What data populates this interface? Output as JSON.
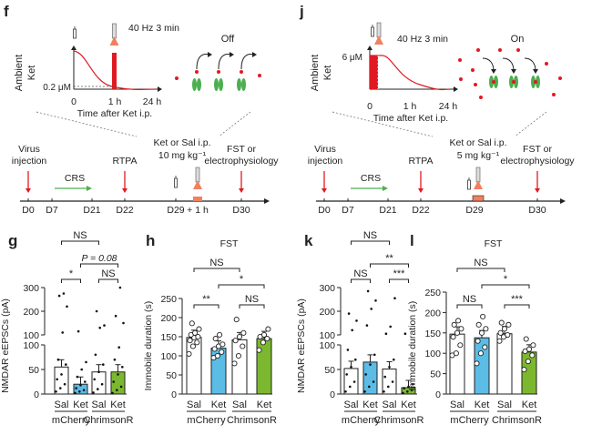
{
  "colors": {
    "red": "#e01a22",
    "green": "#4caf50",
    "blue": "#5bbce6",
    "lime": "#7cb82f",
    "salmon": "#f08060"
  },
  "panels": {
    "f": {
      "label": "f",
      "stim": "40 Hz 3 min",
      "state": "Off",
      "ylabel1": "Ambient",
      "ylabel2": "Ket",
      "conc": "0.2 μM",
      "xticks": [
        "0",
        "1 h",
        "24 h"
      ],
      "xlabel": "Time after Ket i.p.",
      "drug1": "Ket or Sal i.p.",
      "drug2": "10 mg kg⁻¹",
      "virus1": "Virus",
      "virus2": "injection",
      "crs": "CRS",
      "rtpa": "RTPA",
      "fst1": "FST or",
      "fst2": "electrophysiology",
      "days": [
        "D0",
        "D7",
        "D21",
        "D22",
        "D29",
        "+ 1 h",
        "D30"
      ]
    },
    "j": {
      "label": "j",
      "stim": "40 Hz 3 min",
      "state": "On",
      "ylabel1": "Ambient",
      "ylabel2": "Ket",
      "conc": "6 μM",
      "xticks": [
        "0",
        "1 h",
        "24 h"
      ],
      "xlabel": "Time after Ket i.p.",
      "drug1": "Ket or Sal i.p.",
      "drug2": "5 mg kg⁻¹",
      "virus1": "Virus",
      "virus2": "injection",
      "crs": "CRS",
      "rtpa": "RTPA",
      "fst1": "FST or",
      "fst2": "electrophysiology",
      "days": [
        "D0",
        "D7",
        "D21",
        "D22",
        "D29",
        "D30"
      ]
    }
  },
  "chart_data": [
    {
      "id": "g",
      "type": "bar",
      "title": "",
      "ylabel": "NMDAR eEPSCs (pA)",
      "yticks_low": [
        "0",
        "50",
        "100"
      ],
      "yticks_high": [
        "100",
        "200",
        "300"
      ],
      "categories": [
        "Sal",
        "Ket",
        "Sal",
        "Ket"
      ],
      "groups": [
        "mCherry",
        "ChrimsonR"
      ],
      "values": [
        55,
        20,
        45,
        45
      ],
      "fills": [
        "#ffffff",
        "#5bbce6",
        "#ffffff",
        "#7cb82f"
      ],
      "points": [
        [
          5,
          12,
          20,
          30,
          40,
          60,
          70,
          110,
          220,
          265,
          275
        ],
        [
          2,
          5,
          8,
          12,
          18,
          25,
          35,
          50,
          65,
          115
        ],
        [
          3,
          10,
          20,
          30,
          45,
          60,
          80,
          130,
          140,
          200
        ],
        [
          2,
          8,
          15,
          25,
          40,
          55,
          70,
          95,
          150,
          180,
          300
        ]
      ],
      "stats": [
        {
          "text": "NS",
          "a": 0,
          "b": 2,
          "level": 3
        },
        {
          "text": "P = 0.08",
          "a": 1,
          "b": 3,
          "level": 2
        },
        {
          "text": "*",
          "a": 0,
          "b": 1,
          "level": 1
        },
        {
          "text": "NS",
          "a": 2,
          "b": 3,
          "level": 1
        }
      ]
    },
    {
      "id": "h",
      "type": "bar",
      "title": "FST",
      "ylabel": "Immobile duration (s)",
      "yticks": [
        "0",
        "50",
        "100",
        "150",
        "200",
        "250"
      ],
      "ylim": [
        0,
        250
      ],
      "categories": [
        "Sal",
        "Ket",
        "Sal",
        "Ket"
      ],
      "groups": [
        "mCherry",
        "ChrimsonR"
      ],
      "values": [
        148,
        120,
        142,
        145
      ],
      "fills": [
        "#ffffff",
        "#5bbce6",
        "#ffffff",
        "#7cb82f"
      ],
      "points": [
        [
          105,
          125,
          135,
          140,
          148,
          150,
          155,
          160,
          170,
          185
        ],
        [
          95,
          100,
          110,
          118,
          125,
          130,
          145,
          155
        ],
        [
          80,
          100,
          125,
          140,
          150,
          160,
          195
        ],
        [
          115,
          135,
          145,
          150,
          155,
          170
        ]
      ],
      "stats": [
        {
          "text": "NS",
          "a": 0,
          "b": 2,
          "level": 3
        },
        {
          "text": "*",
          "a": 1,
          "b": 3,
          "level": 2
        },
        {
          "text": "**",
          "a": 0,
          "b": 1,
          "level": 1
        },
        {
          "text": "NS",
          "a": 2,
          "b": 3,
          "level": 1
        }
      ]
    },
    {
      "id": "k",
      "type": "bar",
      "title": "",
      "ylabel": "NMDAR eEPSCs (pA)",
      "yticks_low": [
        "0",
        "50",
        "100"
      ],
      "yticks_high": [
        "100",
        "200",
        "300"
      ],
      "categories": [
        "Sal",
        "Ket",
        "Sal",
        "Ket"
      ],
      "groups": [
        "mCherry",
        "ChrimsonR"
      ],
      "values": [
        52,
        65,
        51,
        13
      ],
      "fills": [
        "#ffffff",
        "#5bbce6",
        "#ffffff",
        "#7cb82f"
      ],
      "points": [
        [
          5,
          15,
          25,
          40,
          55,
          70,
          90,
          120,
          160,
          190
        ],
        [
          5,
          15,
          25,
          40,
          60,
          80,
          140,
          210,
          245,
          285
        ],
        [
          5,
          15,
          25,
          35,
          55,
          70,
          105,
          135,
          255
        ],
        [
          2,
          5,
          8,
          12,
          15,
          20,
          105
        ]
      ],
      "stats": [
        {
          "text": "NS",
          "a": 0,
          "b": 2,
          "level": 3
        },
        {
          "text": "**",
          "a": 1,
          "b": 3,
          "level": 2
        },
        {
          "text": "NS",
          "a": 0,
          "b": 1,
          "level": 1
        },
        {
          "text": "***",
          "a": 2,
          "b": 3,
          "level": 1
        }
      ]
    },
    {
      "id": "l",
      "type": "bar",
      "title": "FST",
      "ylabel": "Immobile duration (s)",
      "yticks": [
        "0",
        "50",
        "100",
        "150",
        "200",
        "250"
      ],
      "ylim": [
        0,
        250
      ],
      "categories": [
        "Sal",
        "Ket",
        "Sal",
        "Ket"
      ],
      "groups": [
        "mCherry",
        "ChrimsonR"
      ],
      "values": [
        147,
        138,
        148,
        103
      ],
      "fills": [
        "#ffffff",
        "#5bbce6",
        "#ffffff",
        "#7cb82f"
      ],
      "points": [
        [
          95,
          100,
          120,
          140,
          150,
          160,
          170,
          180
        ],
        [
          75,
          100,
          115,
          130,
          150,
          160,
          170,
          190
        ],
        [
          130,
          140,
          145,
          150,
          160,
          170,
          175
        ],
        [
          60,
          80,
          95,
          105,
          110,
          120,
          135
        ]
      ],
      "stats": [
        {
          "text": "NS",
          "a": 0,
          "b": 2,
          "level": 3
        },
        {
          "text": "*",
          "a": 1,
          "b": 3,
          "level": 2
        },
        {
          "text": "NS",
          "a": 0,
          "b": 1,
          "level": 1
        },
        {
          "text": "***",
          "a": 2,
          "b": 3,
          "level": 1
        }
      ]
    }
  ]
}
